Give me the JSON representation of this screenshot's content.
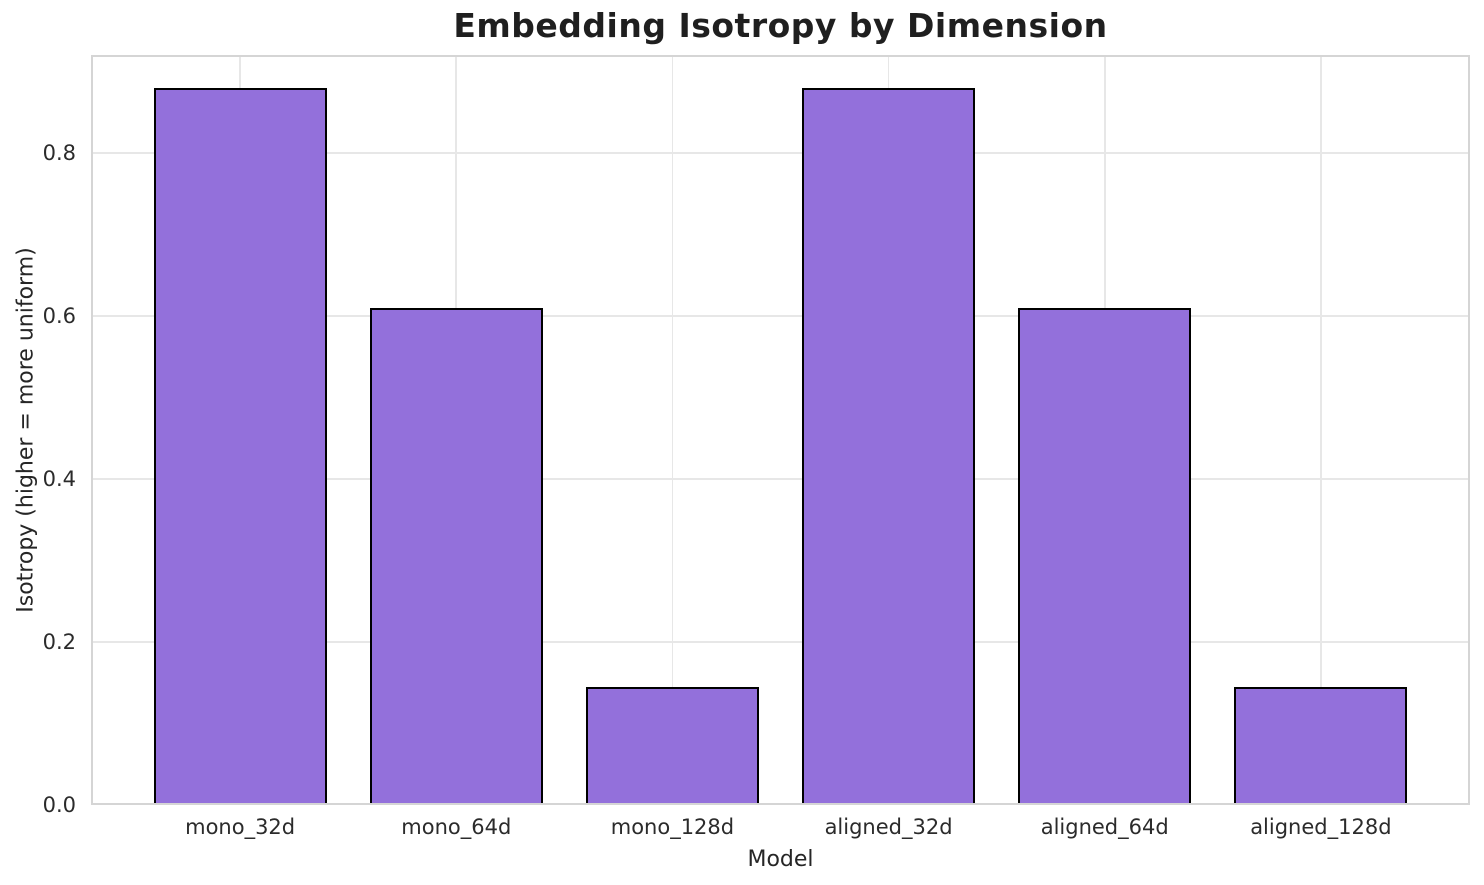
{
  "chart_data": {
    "type": "bar",
    "title": "Embedding Isotropy by Dimension",
    "xlabel": "Model",
    "ylabel": "Isotropy (higher = more uniform)",
    "categories": [
      "mono_32d",
      "mono_64d",
      "mono_128d",
      "aligned_32d",
      "aligned_64d",
      "aligned_128d"
    ],
    "values": [
      0.88,
      0.61,
      0.145,
      0.88,
      0.61,
      0.145
    ],
    "ylim": [
      0,
      0.92
    ],
    "yticks": [
      0.0,
      0.2,
      0.4,
      0.6,
      0.8
    ],
    "ytick_labels": [
      "0.0",
      "0.2",
      "0.4",
      "0.6",
      "0.8"
    ],
    "grid": true,
    "legend": "none",
    "colors": {
      "bar_fill": "#9370DB",
      "bar_edge": "#000000",
      "grid": "#e7e7e7",
      "spine": "#d5d5d5",
      "title_text": "#1f1f1f",
      "tick_text": "#2b2b2b",
      "label_text": "#262626",
      "background": "#ffffff"
    },
    "bar_width_ratio": 0.8,
    "x_edge_pad_ratio": 0.69
  }
}
